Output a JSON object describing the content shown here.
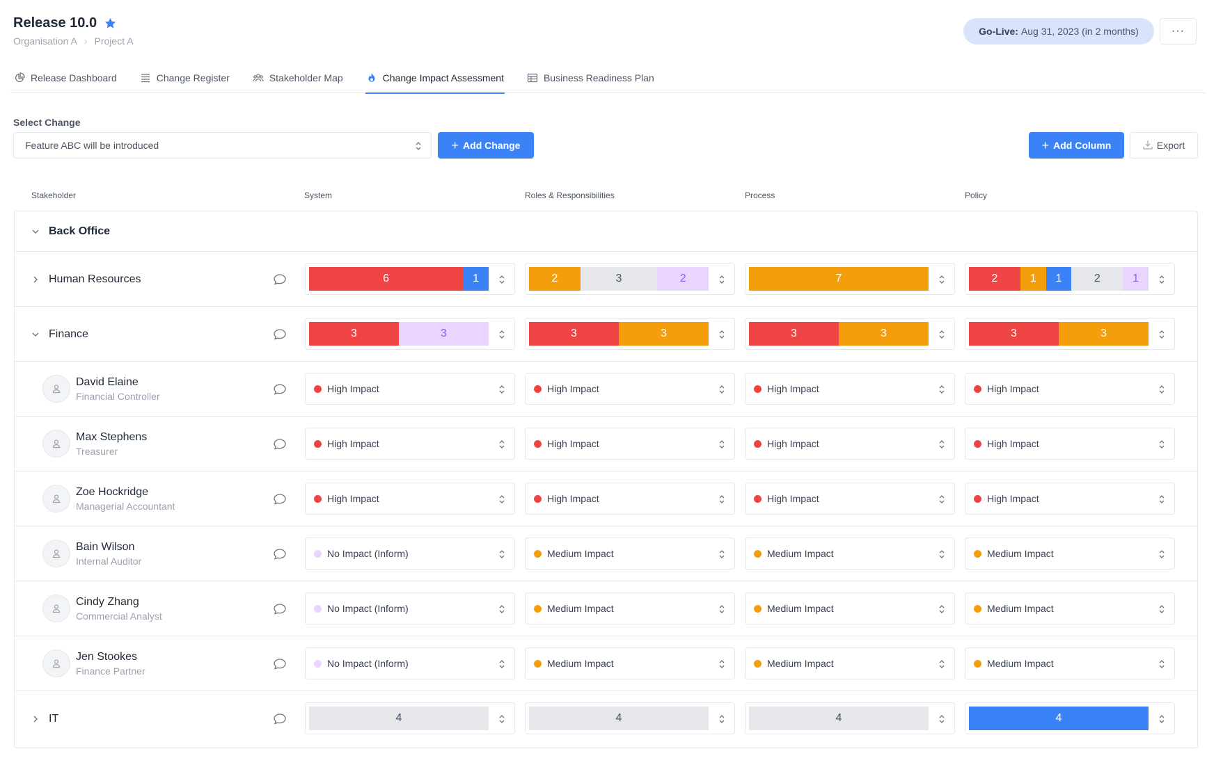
{
  "header": {
    "title": "Release 10.0",
    "star_icon": "star-icon",
    "breadcrumb": [
      "Organisation A",
      "Project A"
    ],
    "golive_label": "Go-Live:",
    "golive_value": "Aug 31, 2023 (in 2 months)",
    "more_label": "···"
  },
  "tabs": [
    {
      "label": "Release Dashboard",
      "icon": "pie-chart-icon",
      "active": false
    },
    {
      "label": "Change Register",
      "icon": "list-icon",
      "active": false
    },
    {
      "label": "Stakeholder Map",
      "icon": "people-icon",
      "active": false
    },
    {
      "label": "Change Impact Assessment",
      "icon": "flame-icon",
      "active": true
    },
    {
      "label": "Business Readiness Plan",
      "icon": "table-icon",
      "active": false
    }
  ],
  "toolbar": {
    "select_label": "Select Change",
    "selected_change": "Feature ABC will be introduced",
    "add_change_label": "Add Change",
    "add_column_label": "Add Column",
    "export_label": "Export"
  },
  "columns": {
    "stakeholder": "Stakeholder",
    "system": "System",
    "roles": "Roles & Responsibilities",
    "process": "Process",
    "policy": "Policy"
  },
  "colors": {
    "high": "#ef4444",
    "medium": "#f59e0b",
    "low": "#3b82f6",
    "none": "#e5e7eb",
    "inform": "#e9d5ff",
    "accent": "#3b82f6"
  },
  "group": {
    "label": "Back Office"
  },
  "teams": [
    {
      "label": "Human Resources",
      "expanded": false,
      "cells": [
        [
          {
            "count": "6",
            "level": "high"
          },
          {
            "count": "1",
            "level": "low"
          }
        ],
        [
          {
            "count": "2",
            "level": "medium"
          },
          {
            "count": "3",
            "level": "none"
          },
          {
            "count": "2",
            "level": "inform"
          }
        ],
        [
          {
            "count": "7",
            "level": "medium"
          }
        ],
        [
          {
            "count": "2",
            "level": "high"
          },
          {
            "count": "1",
            "level": "medium"
          },
          {
            "count": "1",
            "level": "low"
          },
          {
            "count": "2",
            "level": "none"
          },
          {
            "count": "1",
            "level": "inform"
          }
        ]
      ]
    },
    {
      "label": "Finance",
      "expanded": true,
      "cells": [
        [
          {
            "count": "3",
            "level": "high"
          },
          {
            "count": "3",
            "level": "inform"
          }
        ],
        [
          {
            "count": "3",
            "level": "high"
          },
          {
            "count": "3",
            "level": "medium"
          }
        ],
        [
          {
            "count": "3",
            "level": "high"
          },
          {
            "count": "3",
            "level": "medium"
          }
        ],
        [
          {
            "count": "3",
            "level": "high"
          },
          {
            "count": "3",
            "level": "medium"
          }
        ]
      ]
    }
  ],
  "people": [
    {
      "name": "David Elaine",
      "role": "Financial Controller",
      "impacts": [
        {
          "label": "High Impact",
          "level": "high"
        },
        {
          "label": "High Impact",
          "level": "high"
        },
        {
          "label": "High Impact",
          "level": "high"
        },
        {
          "label": "High Impact",
          "level": "high"
        }
      ]
    },
    {
      "name": "Max Stephens",
      "role": "Treasurer",
      "impacts": [
        {
          "label": "High Impact",
          "level": "high"
        },
        {
          "label": "High Impact",
          "level": "high"
        },
        {
          "label": "High Impact",
          "level": "high"
        },
        {
          "label": "High Impact",
          "level": "high"
        }
      ]
    },
    {
      "name": "Zoe Hockridge",
      "role": "Managerial Accountant",
      "impacts": [
        {
          "label": "High Impact",
          "level": "high"
        },
        {
          "label": "High Impact",
          "level": "high"
        },
        {
          "label": "High Impact",
          "level": "high"
        },
        {
          "label": "High Impact",
          "level": "high"
        }
      ]
    },
    {
      "name": "Bain Wilson",
      "role": "Internal Auditor",
      "impacts": [
        {
          "label": "No Impact (Inform)",
          "level": "inform"
        },
        {
          "label": "Medium Impact",
          "level": "medium"
        },
        {
          "label": "Medium Impact",
          "level": "medium"
        },
        {
          "label": "Medium Impact",
          "level": "medium"
        }
      ]
    },
    {
      "name": "Cindy Zhang",
      "role": "Commercial Analyst",
      "impacts": [
        {
          "label": "No Impact (Inform)",
          "level": "inform"
        },
        {
          "label": "Medium Impact",
          "level": "medium"
        },
        {
          "label": "Medium Impact",
          "level": "medium"
        },
        {
          "label": "Medium Impact",
          "level": "medium"
        }
      ]
    },
    {
      "name": "Jen Stookes",
      "role": "Finance Partner",
      "impacts": [
        {
          "label": "No Impact (Inform)",
          "level": "inform"
        },
        {
          "label": "Medium Impact",
          "level": "medium"
        },
        {
          "label": "Medium Impact",
          "level": "medium"
        },
        {
          "label": "Medium Impact",
          "level": "medium"
        }
      ]
    }
  ],
  "it_team": {
    "label": "IT",
    "expanded": false,
    "cells": [
      [
        {
          "count": "4",
          "level": "none"
        }
      ],
      [
        {
          "count": "4",
          "level": "none"
        }
      ],
      [
        {
          "count": "4",
          "level": "none"
        }
      ],
      [
        {
          "count": "4",
          "level": "low"
        }
      ]
    ]
  }
}
